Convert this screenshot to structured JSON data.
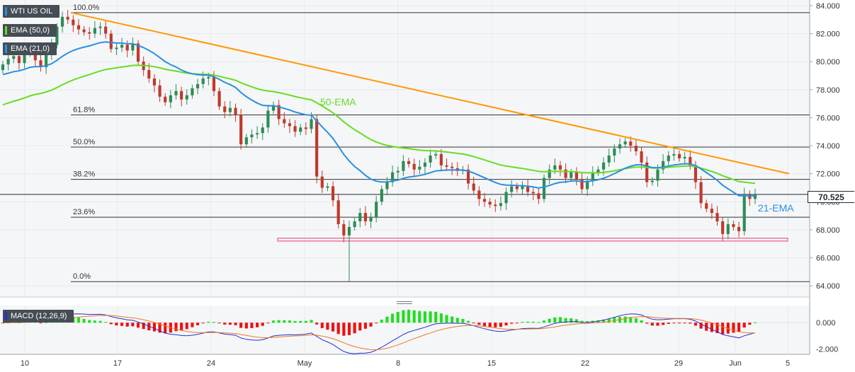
{
  "legend": {
    "symbol": "WTI US OIL",
    "ema50": "EMA (50,0)",
    "ema21": "EMA (21,0)",
    "macd": "MACD (12,26,9)"
  },
  "colors": {
    "up_candle": "#2e8b57",
    "down_candle": "#c0392b",
    "ema50": "#66dd22",
    "ema21": "#2a8fe0",
    "trendline": "#ff9900",
    "support_zone": "#ee7799",
    "macd_line": "#2233cc",
    "signal_line": "#ee7722",
    "hist_pos": "#22dd22",
    "hist_neg": "#ee1111"
  },
  "current_price": "70.525",
  "chart_data": [
    {
      "type": "candlestick",
      "y_ticks": [
        "84.000",
        "82.000",
        "80.000",
        "78.000",
        "76.000",
        "74.000",
        "72.000",
        "70.000",
        "68.000",
        "66.000",
        "64.000"
      ],
      "ylim": [
        63.2,
        84.4
      ],
      "x_ticks": [
        "10",
        "17",
        "24",
        "May",
        "8",
        "15",
        "22",
        "29",
        "Jun",
        "5"
      ],
      "fib_levels": [
        {
          "label": "100.0%",
          "value": 83.5
        },
        {
          "label": "61.8%",
          "value": 76.2
        },
        {
          "label": "50.0%",
          "value": 73.9
        },
        {
          "label": "38.2%",
          "value": 71.6
        },
        {
          "label": "23.6%",
          "value": 68.9
        },
        {
          "label": "0.0%",
          "value": 64.3
        }
      ],
      "annotations": [
        {
          "text": "50-EMA"
        },
        {
          "text": "21-EMA"
        }
      ],
      "current_price_line": 70.525,
      "support_zone": [
        67.2,
        67.4
      ],
      "trendline": {
        "start": 83.5,
        "end": 72.0
      },
      "closes": [
        79.8,
        80.2,
        80.4,
        79.9,
        80.6,
        81.0,
        80.1,
        79.6,
        80.5,
        81.2,
        82.5,
        83.2,
        83.0,
        82.6,
        82.3,
        82.1,
        82.0,
        82.4,
        82.5,
        82.0,
        80.9,
        81.0,
        81.2,
        80.8,
        81.3,
        80.0,
        79.4,
        78.8,
        78.3,
        77.5,
        77.1,
        77.6,
        77.9,
        77.3,
        77.6,
        78.1,
        78.4,
        78.8,
        78.9,
        77.9,
        76.8,
        76.4,
        76.7,
        76.2,
        74.1,
        74.6,
        74.8,
        74.9,
        75.3,
        76.5,
        76.9,
        75.9,
        75.6,
        75.4,
        75.0,
        75.3,
        75.2,
        75.9,
        71.8,
        71.0,
        71.1,
        70.1,
        68.4,
        67.6,
        68.2,
        68.6,
        69.2,
        68.6,
        68.9,
        70.0,
        70.9,
        71.4,
        72.1,
        72.2,
        72.9,
        72.7,
        72.3,
        72.5,
        72.8,
        73.3,
        73.4,
        72.6,
        72.5,
        72.4,
        72.2,
        72.3,
        71.3,
        70.8,
        70.2,
        70.0,
        69.8,
        69.7,
        69.9,
        70.7,
        71.1,
        70.9,
        71.1,
        70.7,
        70.6,
        70.2,
        71.7,
        72.3,
        72.6,
        72.3,
        71.7,
        72.1,
        71.6,
        70.9,
        71.5,
        72.1,
        72.3,
        72.8,
        73.3,
        73.8,
        74.1,
        74.3,
        74.0,
        73.6,
        72.8,
        71.4,
        71.5,
        72.3,
        72.9,
        73.3,
        73.4,
        73.1,
        73.2,
        72.6,
        71.4,
        69.9,
        69.5,
        69.2,
        68.6,
        67.7,
        68.4,
        68.2,
        67.9,
        70.5,
        70.2,
        70.5
      ],
      "series": [
        {
          "name": "50-EMA"
        },
        {
          "name": "21-EMA"
        },
        {
          "name": "MACD (12,26,9)",
          "panel": "macd",
          "y_ticks": [
            "0.000",
            "-2.000"
          ],
          "ylim": [
            -2.4,
            1.3
          ]
        }
      ]
    }
  ]
}
